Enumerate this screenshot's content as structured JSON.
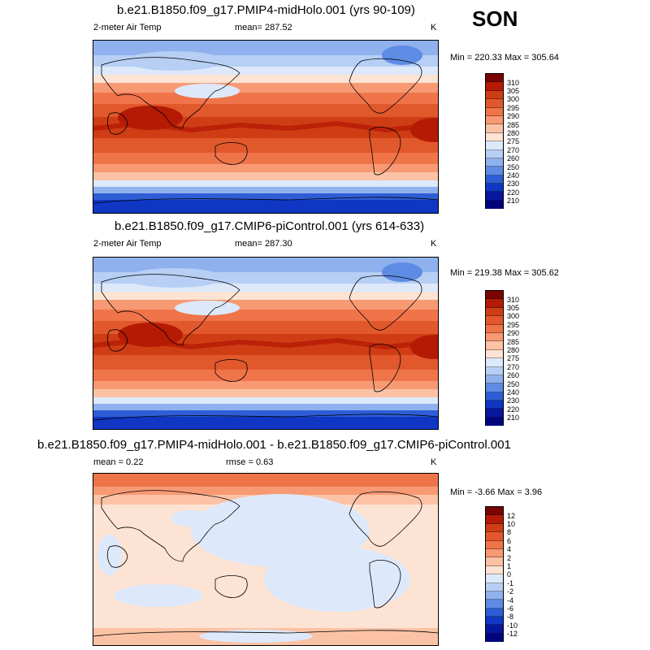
{
  "season": "SON",
  "panels": [
    {
      "title": "b.e21.B1850.f09_g17.PMIP4-midHolo.001 (yrs 90-109)",
      "variable": "2-meter Air Temp",
      "stat": "mean= 287.52",
      "units": "K",
      "minmax": "Min = 220.33 Max = 305.64",
      "colorbar": {
        "labels": [
          "310",
          "305",
          "300",
          "295",
          "290",
          "285",
          "280",
          "275",
          "270",
          "260",
          "250",
          "240",
          "230",
          "220",
          "210"
        ],
        "colors": [
          "#7a0403",
          "#b51a05",
          "#cf3d14",
          "#e2582d",
          "#f0744a",
          "#f79a74",
          "#fbc2a5",
          "#fde3d4",
          "#dde9fb",
          "#b7cff5",
          "#8fb1ee",
          "#5e8be3",
          "#2e5dd6",
          "#0f37c4",
          "#06179e",
          "#02047e"
        ]
      }
    },
    {
      "title": "b.e21.B1850.f09_g17.CMIP6-piControl.001 (yrs 614-633)",
      "variable": "2-meter Air Temp",
      "stat": "mean= 287.30",
      "units": "K",
      "minmax": "Min = 219.38 Max = 305.62",
      "colorbar": {
        "labels": [
          "310",
          "305",
          "300",
          "295",
          "290",
          "285",
          "280",
          "275",
          "270",
          "260",
          "250",
          "240",
          "230",
          "220",
          "210"
        ],
        "colors": [
          "#7a0403",
          "#b51a05",
          "#cf3d14",
          "#e2582d",
          "#f0744a",
          "#f79a74",
          "#fbc2a5",
          "#fde3d4",
          "#dde9fb",
          "#b7cff5",
          "#8fb1ee",
          "#5e8be3",
          "#2e5dd6",
          "#0f37c4",
          "#06179e",
          "#02047e"
        ]
      }
    },
    {
      "title": "b.e21.B1850.f09_g17.PMIP4-midHolo.001 - b.e21.B1850.f09_g17.CMIP6-piControl.001",
      "stat": "mean =   0.22",
      "stat2": "rmse =   0.63",
      "units": "K",
      "minmax": "Min =  -3.66 Max =   3.96",
      "colorbar": {
        "labels": [
          "12",
          "10",
          "8",
          "6",
          "4",
          "2",
          "1",
          "0",
          "-1",
          "-2",
          "-4",
          "-6",
          "-8",
          "-10",
          "-12"
        ],
        "colors": [
          "#7a0403",
          "#b51a05",
          "#cf3d14",
          "#e2582d",
          "#f0744a",
          "#f79a74",
          "#fbc2a5",
          "#fde3d4",
          "#dde9fb",
          "#b7cff5",
          "#8fb1ee",
          "#5e8be3",
          "#2e5dd6",
          "#0f37c4",
          "#06179e",
          "#02047e"
        ]
      }
    }
  ]
}
